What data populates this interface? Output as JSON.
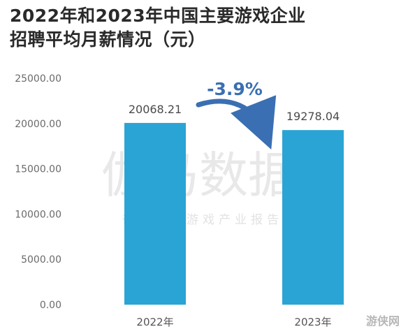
{
  "title_lines": [
    "2022年和2023年中国主要游戏企业",
    "招聘平均月薪情况（元）"
  ],
  "watermark": {
    "main": "伽马数据",
    "sub": "微信号：游戏产业报告"
  },
  "corner_logo": "游侠网",
  "annotation": {
    "text": "-3.9%",
    "color": "#3a6fb3"
  },
  "colors": {
    "bar": "#2aa4d4",
    "arrow": "#3a6fb3"
  },
  "chart_data": {
    "type": "bar",
    "title": "2022年和2023年中国主要游戏企业招聘平均月薪情况（元）",
    "categories": [
      "2022年",
      "2023年"
    ],
    "values": [
      20068.21,
      19278.04
    ],
    "value_labels": [
      "20068.21",
      "19278.04"
    ],
    "yticks": [
      "0.00",
      "5000.00",
      "10000.00",
      "15000.00",
      "20000.00",
      "25000.00"
    ],
    "ylim": [
      0,
      25000
    ],
    "xlabel": "",
    "ylabel": "",
    "grid": false,
    "legend": "none"
  }
}
